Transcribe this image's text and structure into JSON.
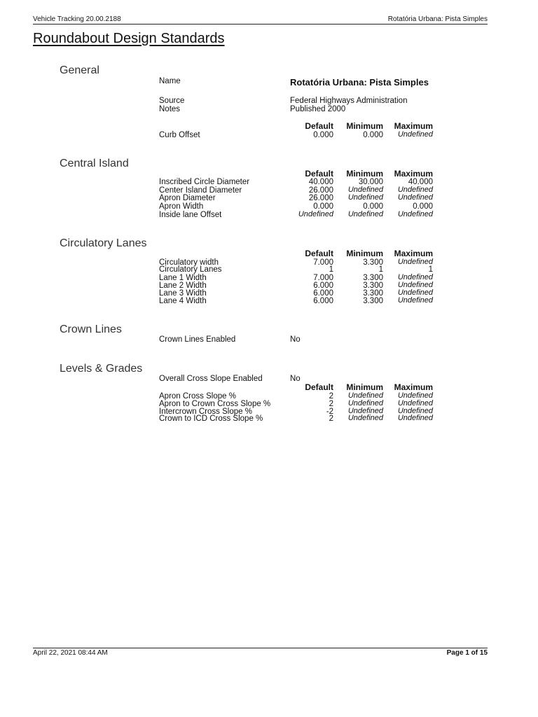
{
  "header": {
    "app": "Vehicle Tracking 20.00.2188",
    "design_name": "Rotatória Urbana: Pista Simples"
  },
  "title": "Roundabout Design Standards",
  "columns": {
    "default": "Default",
    "minimum": "Minimum",
    "maximum": "Maximum"
  },
  "general": {
    "heading": "General",
    "name_label": "Name",
    "name_value": "Rotatória Urbana: Pista Simples",
    "source_label": "Source",
    "source_value": "Federal Highways Administration",
    "notes_label": "Notes",
    "notes_value": "Published 2000",
    "rows": [
      {
        "label": "Curb Offset",
        "default": "0.000",
        "minimum": "0.000",
        "maximum": "Undefined"
      }
    ]
  },
  "central_island": {
    "heading": "Central Island",
    "rows": [
      {
        "label": "Inscribed Circle Diameter",
        "default": "40.000",
        "minimum": "30.000",
        "maximum": "40.000"
      },
      {
        "label": "Center Island Diameter",
        "default": "26.000",
        "minimum": "Undefined",
        "maximum": "Undefined"
      },
      {
        "label": "Apron Diameter",
        "default": "26.000",
        "minimum": "Undefined",
        "maximum": "Undefined"
      },
      {
        "label": "Apron Width",
        "default": "0.000",
        "minimum": "0.000",
        "maximum": "0.000"
      },
      {
        "label": "Inside lane Offset",
        "default": "Undefined",
        "minimum": "Undefined",
        "maximum": "Undefined"
      }
    ]
  },
  "circulatory_lanes": {
    "heading": "Circulatory Lanes",
    "rows": [
      {
        "label": "Circulatory width",
        "default": "7.000",
        "minimum": "3.300",
        "maximum": "Undefined"
      },
      {
        "label": "Circulatory Lanes",
        "default": "1",
        "minimum": "1",
        "maximum": "1"
      },
      {
        "label": "Lane 1 Width",
        "default": "7.000",
        "minimum": "3.300",
        "maximum": "Undefined"
      },
      {
        "label": "Lane 2 Width",
        "default": "6.000",
        "minimum": "3.300",
        "maximum": "Undefined"
      },
      {
        "label": "Lane 3 Width",
        "default": "6.000",
        "minimum": "3.300",
        "maximum": "Undefined"
      },
      {
        "label": "Lane 4 Width",
        "default": "6.000",
        "minimum": "3.300",
        "maximum": "Undefined"
      }
    ]
  },
  "crown_lines": {
    "heading": "Crown Lines",
    "enabled_label": "Crown Lines Enabled",
    "enabled_value": "No"
  },
  "levels_grades": {
    "heading": "Levels & Grades",
    "cross_slope_label": "Overall Cross Slope Enabled",
    "cross_slope_value": "No",
    "rows": [
      {
        "label": "Apron Cross Slope %",
        "default": "2",
        "minimum": "Undefined",
        "maximum": "Undefined"
      },
      {
        "label": "Apron to Crown Cross Slope %",
        "default": "2",
        "minimum": "Undefined",
        "maximum": "Undefined"
      },
      {
        "label": "Intercrown Cross Slope %",
        "default": "-2",
        "minimum": "Undefined",
        "maximum": "Undefined"
      },
      {
        "label": "Crown to ICD Cross Slope %",
        "default": "2",
        "minimum": "Undefined",
        "maximum": "Undefined"
      }
    ]
  },
  "footer": {
    "timestamp": "April 22, 2021 08:44 AM",
    "page": "Page 1 of 15"
  }
}
